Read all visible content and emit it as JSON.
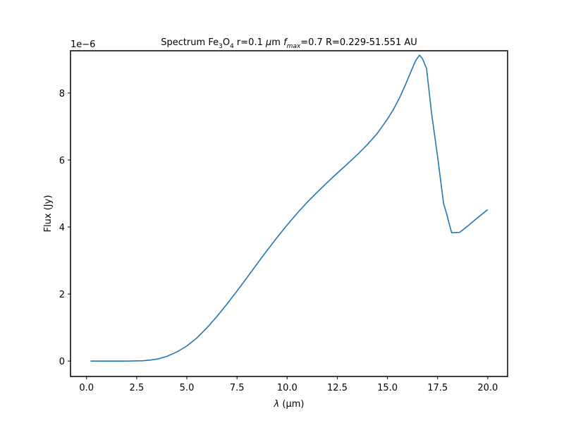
{
  "chart_data": {
    "type": "line",
    "title": "Spectrum Fe₃O₄ r=0.1 μm f_max=0.7 R=0.229-51.551 AU",
    "title_parts": {
      "prefix": "Spectrum Fe",
      "sub1": "3",
      "mid1": "O",
      "sub2": "4",
      "mid2": " r=0.1 ",
      "mu": "μ",
      "mid3": "m ",
      "f": "f",
      "fsub": "max",
      "suffix": "=0.7 R=0.229-51.551 AU"
    },
    "xlabel": "λ (μm)",
    "xlabel_parts": {
      "lambda": "λ",
      "rest": " (μm)"
    },
    "ylabel": "Flux (Jy)",
    "offset_label": "1e−6",
    "scale": 1e-06,
    "xlim": [
      -0.8,
      20.99
    ],
    "ylim": [
      -0.46,
      9.26
    ],
    "xticks": [
      0.0,
      2.5,
      5.0,
      7.5,
      10.0,
      12.5,
      15.0,
      17.5,
      20.0
    ],
    "xtick_labels": [
      "0.0",
      "2.5",
      "5.0",
      "7.5",
      "10.0",
      "12.5",
      "15.0",
      "17.5",
      "20.0"
    ],
    "yticks": [
      0,
      2,
      4,
      6,
      8
    ],
    "ytick_labels": [
      "0",
      "2",
      "4",
      "6",
      "8"
    ],
    "series": [
      {
        "name": "Fe3O4 spectrum",
        "color": "#1f77b4",
        "x": [
          0.2,
          1.0,
          2.0,
          2.8,
          3.2,
          3.6,
          4.0,
          4.5,
          5.0,
          5.5,
          6.0,
          6.5,
          7.0,
          7.5,
          8.0,
          8.5,
          9.0,
          9.5,
          10.0,
          10.5,
          11.0,
          11.5,
          12.0,
          12.5,
          13.0,
          13.5,
          14.0,
          14.5,
          15.0,
          15.3,
          15.6,
          15.9,
          16.2,
          16.4,
          16.6,
          16.75,
          16.95,
          17.2,
          17.5,
          17.8,
          17.95,
          18.1,
          18.2,
          18.6,
          19.0,
          19.5,
          20.0
        ],
        "y": [
          0.0,
          0.0,
          0.0,
          0.01,
          0.03,
          0.07,
          0.14,
          0.27,
          0.45,
          0.69,
          0.99,
          1.33,
          1.7,
          2.09,
          2.49,
          2.9,
          3.3,
          3.69,
          4.06,
          4.41,
          4.74,
          5.04,
          5.33,
          5.61,
          5.88,
          6.16,
          6.46,
          6.8,
          7.22,
          7.51,
          7.85,
          8.25,
          8.68,
          8.96,
          9.13,
          9.02,
          8.73,
          7.4,
          6.1,
          4.7,
          4.4,
          4.05,
          3.83,
          3.84,
          4.03,
          4.28,
          4.52
        ]
      }
    ]
  }
}
